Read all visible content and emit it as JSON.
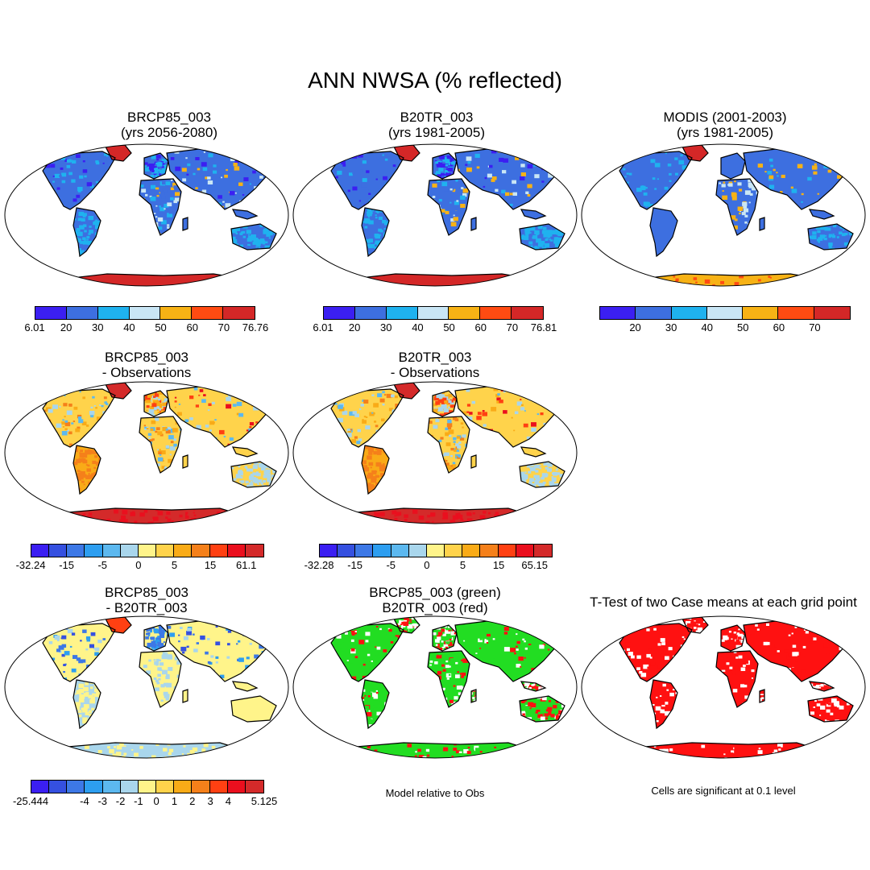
{
  "title": "ANN NWSA (% reflected)",
  "colors": {
    "ocean": "#ffffff",
    "coast": "#000000",
    "abs_scale": [
      "#3b1ff2",
      "#3d6fe0",
      "#1fb2ef",
      "#c9e6f5",
      "#f7b215",
      "#ff4b12",
      "#d42727"
    ],
    "diff_scale": [
      "#3b1ff2",
      "#3550e0",
      "#3d78e6",
      "#2d9ef0",
      "#5cb8ef",
      "#a9d6ec",
      "#fff48a",
      "#ffd34b",
      "#f9ab17",
      "#f5801a",
      "#ff4012",
      "#ea0f1e",
      "#d42a2a"
    ],
    "pct_scale": [
      "#3b1ff2",
      "#3550e0",
      "#3d78e6",
      "#2d9ef0",
      "#5cb8ef",
      "#a9d6ec",
      "#fff48a",
      "#ffd34b",
      "#f9ab17",
      "#f5801a",
      "#ff4012",
      "#ea0f1e",
      "#d42a2a"
    ],
    "green": "#22dd22",
    "red": "#ff1111"
  },
  "panels": {
    "p1": {
      "title1": "BRCP85_003",
      "title2": "(yrs 2056-2080)"
    },
    "p2": {
      "title1": "B20TR_003",
      "title2": "(yrs 1981-2005)"
    },
    "p3": {
      "title1": "MODIS (2001-2003)",
      "title2": "(yrs 1981-2005)"
    },
    "p4": {
      "title1": "BRCP85_003",
      "title2": "- Observations"
    },
    "p5": {
      "title1": "B20TR_003",
      "title2": "- Observations"
    },
    "p7": {
      "title1": "BRCP85_003",
      "title2": "- B20TR_003"
    },
    "p8": {
      "title1": "BRCP85_003 (green)",
      "title2": "B20TR_003 (red)",
      "note": "Model relative to Obs"
    },
    "p9": {
      "title1": "T-Test of two Case means at each grid point",
      "note": "Cells are significant at 0.1 level"
    }
  },
  "colorbars": {
    "cb1": {
      "labels": [
        "6.01",
        "20",
        "30",
        "40",
        "50",
        "60",
        "70",
        "76.76"
      ]
    },
    "cb2": {
      "labels": [
        "6.01",
        "20",
        "30",
        "40",
        "50",
        "60",
        "70",
        "76.81"
      ]
    },
    "cb3": {
      "labels": [
        "20",
        "30",
        "40",
        "50",
        "60",
        "70"
      ]
    },
    "cb4": {
      "labels": [
        "-32.24",
        "-15",
        "-5",
        "0",
        "5",
        "15",
        "61.1"
      ]
    },
    "cb5": {
      "labels": [
        "-32.28",
        "-15",
        "-5",
        "0",
        "5",
        "15",
        "65.15"
      ]
    },
    "cb7": {
      "labels": [
        "-25.444",
        "-4",
        "-3",
        "-2",
        "-1",
        "0",
        "1",
        "2",
        "3",
        "4",
        "5.125"
      ]
    }
  }
}
